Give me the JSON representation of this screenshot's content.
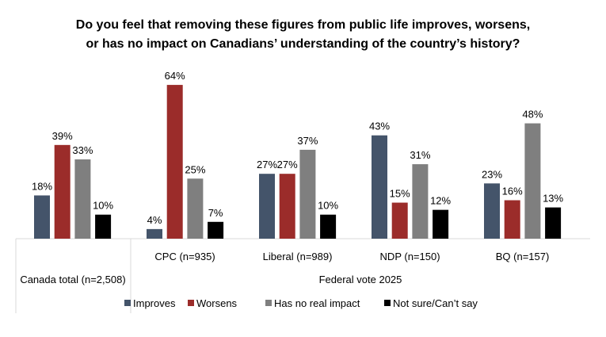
{
  "chart_data": {
    "type": "bar",
    "title_lines": [
      "Do you feel that removing these figures from public life improves, worsens,",
      "or has no impact on Canadians’ understanding of the country’s history?"
    ],
    "categories": [
      "Canada total (n=2,508)",
      "CPC (n=935)",
      "Liberal (n=989)",
      "NDP (n=150)",
      "BQ (n=157)"
    ],
    "group_label": "Federal vote 2025",
    "series": [
      {
        "name": "Improves",
        "color": "#44546a",
        "values": [
          18,
          4,
          27,
          43,
          23
        ]
      },
      {
        "name": "Worsens",
        "color": "#9b2c2a",
        "values": [
          39,
          64,
          27,
          15,
          16
        ]
      },
      {
        "name": "Has no real impact",
        "color": "#7f7f7f",
        "values": [
          33,
          25,
          37,
          31,
          48
        ]
      },
      {
        "name": "Not sure/Can’t say",
        "color": "#000000",
        "values": [
          10,
          7,
          10,
          12,
          13
        ]
      }
    ],
    "value_suffix": "%",
    "ylim": [
      0,
      70
    ],
    "grid": false,
    "legend_position": "bottom"
  }
}
